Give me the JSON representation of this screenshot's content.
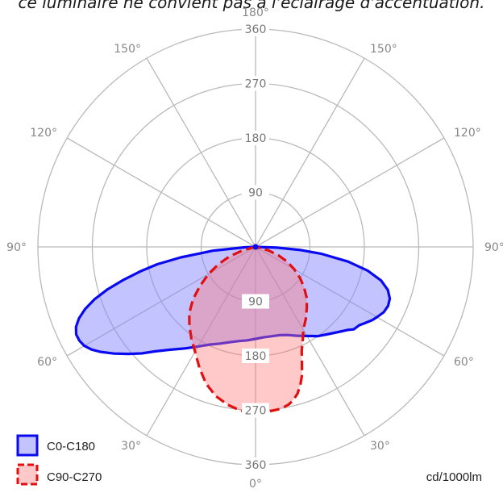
{
  "caption": "ce luminaire ne convient pas à l'éclairage d'accentuation.",
  "chart_data": {
    "type": "polar",
    "unit_label": "cd/1000lm",
    "radial_ticks": [
      90,
      180,
      270,
      360
    ],
    "rlim": [
      0,
      360
    ],
    "grid": true,
    "legend_position": "bottom-left",
    "angle_labels_left": [
      {
        "text": "180°",
        "angle": 180
      },
      {
        "text": "150°",
        "angle": 150
      },
      {
        "text": "120°",
        "angle": 120
      },
      {
        "text": "90°",
        "angle": 90
      },
      {
        "text": "60°",
        "angle": 60
      },
      {
        "text": "30°",
        "angle": 30
      },
      {
        "text": "0°",
        "angle": 0
      }
    ],
    "angle_labels_right": [
      {
        "text": "150°",
        "angle": 150
      },
      {
        "text": "120°",
        "angle": 120
      },
      {
        "text": "90°",
        "angle": 90
      },
      {
        "text": "60°",
        "angle": 60
      },
      {
        "text": "30°",
        "angle": 30
      }
    ],
    "series": [
      {
        "name": "C0-C180",
        "line_color": "#0a0af0",
        "fill_color": "#8888ff",
        "fill_opacity": 0.5,
        "dash": false,
        "points": [
          [
            -90,
            0
          ],
          [
            -88,
            18
          ],
          [
            -85,
            70
          ],
          [
            -82,
            125
          ],
          [
            -80,
            165
          ],
          [
            -78,
            195
          ],
          [
            -76,
            225
          ],
          [
            -74,
            255
          ],
          [
            -72,
            280
          ],
          [
            -70,
            300
          ],
          [
            -68,
            315
          ],
          [
            -66,
            325
          ],
          [
            -64,
            330
          ],
          [
            -62,
            330
          ],
          [
            -60,
            327
          ],
          [
            -58,
            320
          ],
          [
            -56,
            310
          ],
          [
            -53,
            293
          ],
          [
            -50,
            275
          ],
          [
            -47,
            258
          ],
          [
            -44,
            240
          ],
          [
            -40,
            222
          ],
          [
            -35,
            205
          ],
          [
            -30,
            190
          ],
          [
            -25,
            178
          ],
          [
            -20,
            170
          ],
          [
            -15,
            163
          ],
          [
            -10,
            158
          ],
          [
            -5,
            155
          ],
          [
            0,
            152
          ],
          [
            5,
            150
          ],
          [
            10,
            150
          ],
          [
            15,
            151
          ],
          [
            20,
            155
          ],
          [
            25,
            162
          ],
          [
            30,
            170
          ],
          [
            35,
            180
          ],
          [
            40,
            188
          ],
          [
            45,
            198
          ],
          [
            48,
            205
          ],
          [
            50,
            212
          ],
          [
            53,
            215
          ],
          [
            55,
            220
          ],
          [
            58,
            228
          ],
          [
            60,
            232
          ],
          [
            63,
            238
          ],
          [
            66,
            240
          ],
          [
            69,
            238
          ],
          [
            72,
            230
          ],
          [
            75,
            215
          ],
          [
            78,
            190
          ],
          [
            81,
            155
          ],
          [
            84,
            110
          ],
          [
            86,
            75
          ],
          [
            88,
            35
          ],
          [
            90,
            0
          ]
        ]
      },
      {
        "name": "C90-C270",
        "line_color": "#e01010",
        "fill_color": "#ff7777",
        "fill_opacity": 0.4,
        "dash": true,
        "points": [
          [
            -80,
            0
          ],
          [
            -75,
            22
          ],
          [
            -70,
            45
          ],
          [
            -65,
            68
          ],
          [
            -60,
            90
          ],
          [
            -55,
            112
          ],
          [
            -50,
            135
          ],
          [
            -45,
            155
          ],
          [
            -40,
            170
          ],
          [
            -35,
            185
          ],
          [
            -30,
            200
          ],
          [
            -25,
            220
          ],
          [
            -20,
            240
          ],
          [
            -15,
            255
          ],
          [
            -10,
            265
          ],
          [
            -5,
            272
          ],
          [
            0,
            274
          ],
          [
            3,
            274
          ],
          [
            6,
            272
          ],
          [
            8,
            271
          ],
          [
            10,
            269
          ],
          [
            12,
            266
          ],
          [
            14,
            260
          ],
          [
            16,
            252
          ],
          [
            18,
            240
          ],
          [
            20,
            225
          ],
          [
            22,
            205
          ],
          [
            24,
            188
          ],
          [
            27,
            172
          ],
          [
            30,
            158
          ],
          [
            35,
            145
          ],
          [
            40,
            132
          ],
          [
            45,
            120
          ],
          [
            50,
            105
          ],
          [
            55,
            90
          ],
          [
            60,
            74
          ],
          [
            65,
            58
          ],
          [
            70,
            40
          ],
          [
            75,
            22
          ],
          [
            80,
            0
          ]
        ]
      }
    ]
  }
}
